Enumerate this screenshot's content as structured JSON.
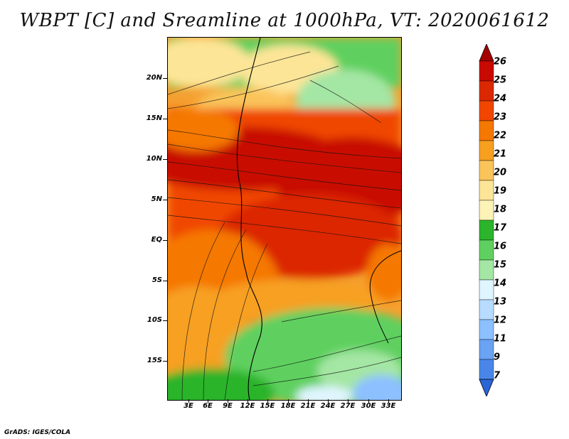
{
  "title": "WBPT [C] and Sreamline at 1000hPa, VT: 2020061612",
  "footer": "GrADS: IGES/COLA",
  "axes": {
    "lat_labels": [
      "20N",
      "15N",
      "10N",
      "5N",
      "EQ",
      "5S",
      "10S",
      "15S"
    ],
    "lon_labels": [
      "3E",
      "6E",
      "9E",
      "12E",
      "15E",
      "18E",
      "21E",
      "24E",
      "27E",
      "30E",
      "33E"
    ]
  },
  "colorbar": {
    "labels": [
      "26",
      "25",
      "24",
      "23",
      "22",
      "21",
      "20",
      "19",
      "18",
      "17",
      "16",
      "15",
      "14",
      "13",
      "12",
      "11",
      "9",
      "7"
    ],
    "colors": [
      "#a50000",
      "#c80a00",
      "#dc2800",
      "#f04600",
      "#f57800",
      "#f7a020",
      "#fac45a",
      "#fde597",
      "#fdf3b7",
      "#2cb42c",
      "#5fd05f",
      "#a4e6a4",
      "#dff5ff",
      "#b7dcff",
      "#8cc0ff",
      "#6aa2f4",
      "#4a86e8",
      "#2a65d8"
    ]
  },
  "legend_top_color": "#a50000",
  "legend_bottom_color": "#2a65d8"
}
